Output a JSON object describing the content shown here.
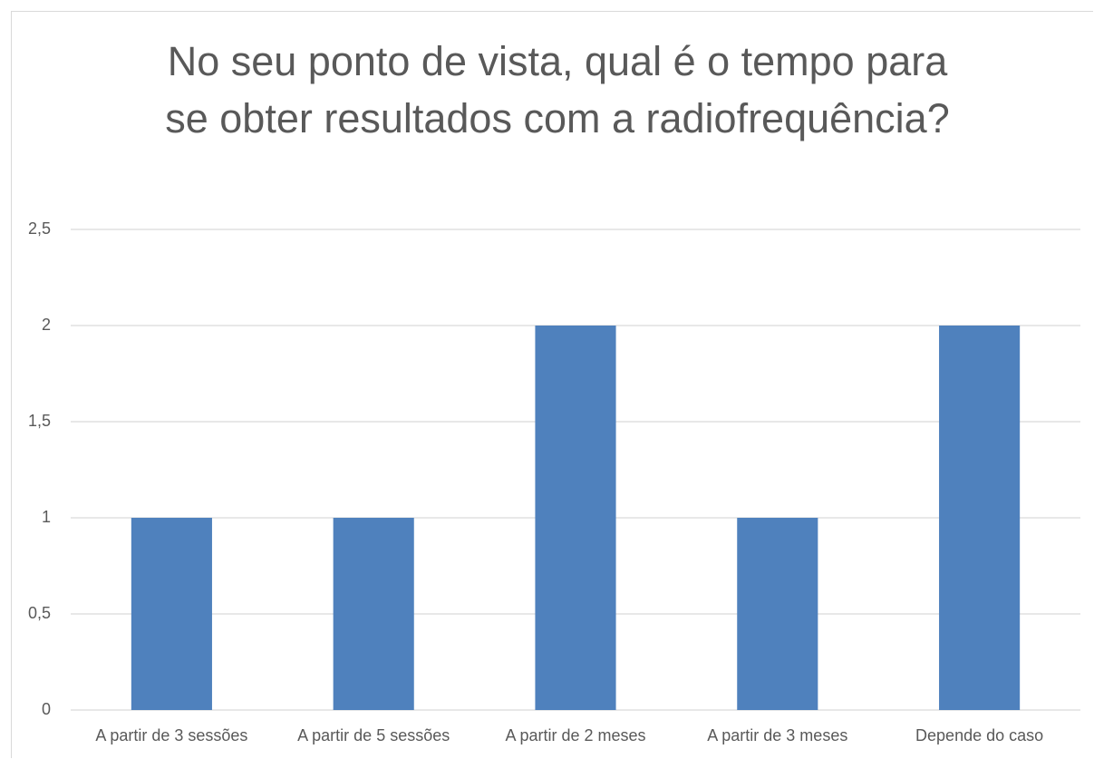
{
  "chart_data": {
    "type": "bar",
    "title": "No seu ponto de vista, qual é o tempo para se obter resultados com a radiofrequência?",
    "categories": [
      "A partir de 3 sessões",
      "A partir de 5 sessões",
      "A partir de 2 meses",
      "A partir de 3 meses",
      "Depende do caso"
    ],
    "values": [
      1,
      1,
      2,
      1,
      2
    ],
    "color": "#4f81bd",
    "ylim": [
      0,
      2.5
    ],
    "yticks": [
      0,
      {
        "value": 0.5,
        "label": "0,5"
      },
      1,
      {
        "value": 1.5,
        "label": "1,5"
      },
      2,
      {
        "value": 2.5,
        "label": "2,5"
      }
    ],
    "grid": true
  }
}
